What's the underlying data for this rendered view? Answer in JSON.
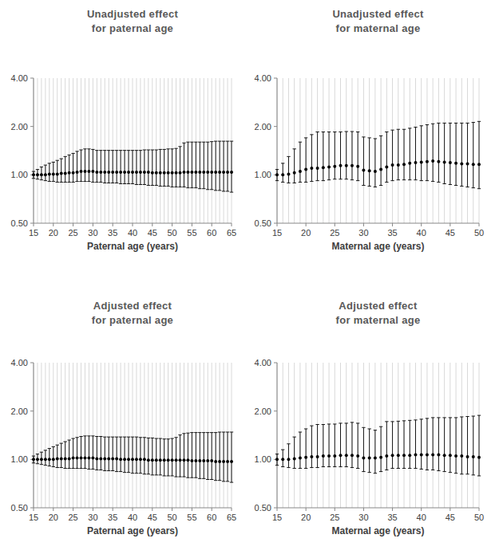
{
  "chart_data": [
    {
      "type": "scatter",
      "title": [
        "Unadjusted effect",
        "for paternal age"
      ],
      "x_label": "Paternal age (years)",
      "x": [
        15,
        16,
        17,
        18,
        19,
        20,
        21,
        22,
        23,
        24,
        25,
        26,
        27,
        28,
        29,
        30,
        31,
        32,
        33,
        34,
        35,
        36,
        37,
        38,
        39,
        40,
        41,
        42,
        43,
        44,
        45,
        46,
        47,
        48,
        49,
        50,
        51,
        52,
        53,
        54,
        55,
        56,
        57,
        58,
        59,
        60,
        61,
        62,
        63,
        64,
        65
      ],
      "values": [
        1.0,
        1.0,
        1.0,
        1.0,
        1.01,
        1.01,
        1.01,
        1.02,
        1.02,
        1.03,
        1.03,
        1.04,
        1.05,
        1.05,
        1.05,
        1.05,
        1.04,
        1.04,
        1.04,
        1.04,
        1.04,
        1.04,
        1.04,
        1.04,
        1.04,
        1.04,
        1.04,
        1.04,
        1.04,
        1.04,
        1.03,
        1.03,
        1.03,
        1.03,
        1.03,
        1.03,
        1.03,
        1.03,
        1.04,
        1.04,
        1.04,
        1.04,
        1.04,
        1.04,
        1.04,
        1.04,
        1.04,
        1.04,
        1.04,
        1.04,
        1.04
      ],
      "ci_lower": [
        0.95,
        0.94,
        0.93,
        0.92,
        0.91,
        0.91,
        0.9,
        0.9,
        0.9,
        0.9,
        0.9,
        0.91,
        0.91,
        0.91,
        0.91,
        0.9,
        0.9,
        0.9,
        0.89,
        0.89,
        0.89,
        0.89,
        0.88,
        0.88,
        0.88,
        0.88,
        0.87,
        0.87,
        0.87,
        0.86,
        0.86,
        0.86,
        0.85,
        0.85,
        0.85,
        0.84,
        0.84,
        0.84,
        0.84,
        0.83,
        0.83,
        0.83,
        0.82,
        0.82,
        0.81,
        0.81,
        0.8,
        0.8,
        0.79,
        0.79,
        0.78
      ],
      "ci_upper": [
        1.05,
        1.08,
        1.12,
        1.15,
        1.18,
        1.2,
        1.23,
        1.26,
        1.3,
        1.33,
        1.36,
        1.4,
        1.43,
        1.45,
        1.45,
        1.44,
        1.42,
        1.42,
        1.42,
        1.42,
        1.42,
        1.42,
        1.42,
        1.42,
        1.42,
        1.42,
        1.42,
        1.42,
        1.43,
        1.43,
        1.43,
        1.43,
        1.44,
        1.44,
        1.45,
        1.45,
        1.46,
        1.5,
        1.58,
        1.6,
        1.6,
        1.6,
        1.6,
        1.6,
        1.6,
        1.61,
        1.62,
        1.62,
        1.62,
        1.62,
        1.62
      ],
      "xlim": [
        15,
        65
      ],
      "xticks": [
        15,
        20,
        25,
        30,
        35,
        40,
        45,
        50,
        55,
        60,
        65
      ],
      "ylim": [
        0.5,
        4
      ],
      "yticks": [
        {
          "value": 0.5,
          "label": "0.50"
        },
        {
          "value": 1,
          "label": "1.00"
        },
        {
          "value": 2,
          "label": "2.00"
        },
        {
          "value": 4,
          "label": "4.00"
        }
      ],
      "log": "y",
      "grid": true,
      "color": "#000000",
      "marker": "circle"
    },
    {
      "type": "scatter",
      "title": [
        "Unadjusted effect",
        "for maternal age"
      ],
      "x_label": "Maternal age (years)",
      "x": [
        15,
        16,
        17,
        18,
        19,
        20,
        21,
        22,
        23,
        24,
        25,
        26,
        27,
        28,
        29,
        30,
        31,
        32,
        33,
        34,
        35,
        36,
        37,
        38,
        39,
        40,
        41,
        42,
        43,
        44,
        45,
        46,
        47,
        48,
        49,
        50
      ],
      "values": [
        1.0,
        1.0,
        1.01,
        1.03,
        1.05,
        1.08,
        1.1,
        1.1,
        1.11,
        1.12,
        1.13,
        1.14,
        1.14,
        1.14,
        1.13,
        1.07,
        1.06,
        1.05,
        1.08,
        1.12,
        1.15,
        1.15,
        1.16,
        1.18,
        1.19,
        1.2,
        1.21,
        1.22,
        1.21,
        1.2,
        1.19,
        1.18,
        1.17,
        1.17,
        1.16,
        1.16
      ],
      "ci_lower": [
        0.92,
        0.9,
        0.89,
        0.89,
        0.9,
        0.9,
        0.91,
        0.92,
        0.92,
        0.93,
        0.94,
        0.94,
        0.94,
        0.93,
        0.92,
        0.86,
        0.85,
        0.84,
        0.86,
        0.9,
        0.92,
        0.93,
        0.93,
        0.93,
        0.93,
        0.92,
        0.92,
        0.91,
        0.9,
        0.88,
        0.87,
        0.86,
        0.85,
        0.84,
        0.83,
        0.82
      ],
      "ci_upper": [
        1.08,
        1.18,
        1.3,
        1.45,
        1.6,
        1.7,
        1.78,
        1.85,
        1.85,
        1.85,
        1.85,
        1.85,
        1.86,
        1.86,
        1.85,
        1.72,
        1.7,
        1.68,
        1.75,
        1.85,
        1.9,
        1.92,
        1.92,
        1.95,
        1.98,
        2.02,
        2.05,
        2.08,
        2.1,
        2.1,
        2.1,
        2.1,
        2.1,
        2.1,
        2.12,
        2.15
      ],
      "xlim": [
        15,
        50
      ],
      "xticks": [
        15,
        20,
        25,
        30,
        35,
        40,
        45,
        50
      ],
      "ylim": [
        0.5,
        4
      ],
      "yticks": [
        {
          "value": 0.5,
          "label": "0.50"
        },
        {
          "value": 1,
          "label": "1.00"
        },
        {
          "value": 2,
          "label": "2.00"
        },
        {
          "value": 4,
          "label": "4.00"
        }
      ],
      "log": "y",
      "grid": true,
      "color": "#000000",
      "marker": "circle"
    },
    {
      "type": "scatter",
      "title": [
        "Adjusted effect",
        "for paternal age"
      ],
      "x_label": "Paternal age (years)",
      "x": [
        15,
        16,
        17,
        18,
        19,
        20,
        21,
        22,
        23,
        24,
        25,
        26,
        27,
        28,
        29,
        30,
        31,
        32,
        33,
        34,
        35,
        36,
        37,
        38,
        39,
        40,
        41,
        42,
        43,
        44,
        45,
        46,
        47,
        48,
        49,
        50,
        51,
        52,
        53,
        54,
        55,
        56,
        57,
        58,
        59,
        60,
        61,
        62,
        63,
        64,
        65
      ],
      "values": [
        1.0,
        1.0,
        1.0,
        1.0,
        1.0,
        1.0,
        1.01,
        1.01,
        1.01,
        1.01,
        1.02,
        1.02,
        1.02,
        1.02,
        1.02,
        1.02,
        1.01,
        1.01,
        1.01,
        1.01,
        1.01,
        1.01,
        1.0,
        1.0,
        1.0,
        1.0,
        1.0,
        1.0,
        1.0,
        0.99,
        0.99,
        0.99,
        0.99,
        0.99,
        0.99,
        0.99,
        0.99,
        0.99,
        0.99,
        0.99,
        0.98,
        0.98,
        0.98,
        0.98,
        0.98,
        0.98,
        0.97,
        0.97,
        0.97,
        0.97,
        0.97
      ],
      "ci_lower": [
        0.95,
        0.94,
        0.93,
        0.92,
        0.91,
        0.9,
        0.89,
        0.89,
        0.88,
        0.88,
        0.88,
        0.88,
        0.88,
        0.88,
        0.87,
        0.87,
        0.86,
        0.86,
        0.85,
        0.85,
        0.85,
        0.84,
        0.84,
        0.83,
        0.83,
        0.82,
        0.82,
        0.82,
        0.81,
        0.81,
        0.8,
        0.8,
        0.8,
        0.79,
        0.79,
        0.79,
        0.78,
        0.78,
        0.78,
        0.77,
        0.77,
        0.77,
        0.76,
        0.76,
        0.75,
        0.75,
        0.74,
        0.74,
        0.73,
        0.73,
        0.72
      ],
      "ci_upper": [
        1.05,
        1.08,
        1.11,
        1.14,
        1.17,
        1.2,
        1.23,
        1.26,
        1.29,
        1.32,
        1.35,
        1.37,
        1.39,
        1.4,
        1.4,
        1.4,
        1.39,
        1.39,
        1.38,
        1.38,
        1.38,
        1.38,
        1.38,
        1.38,
        1.38,
        1.38,
        1.38,
        1.37,
        1.37,
        1.36,
        1.36,
        1.35,
        1.35,
        1.34,
        1.34,
        1.35,
        1.37,
        1.42,
        1.45,
        1.46,
        1.47,
        1.47,
        1.47,
        1.47,
        1.47,
        1.47,
        1.47,
        1.48,
        1.48,
        1.48,
        1.48
      ],
      "xlim": [
        15,
        65
      ],
      "xticks": [
        15,
        20,
        25,
        30,
        35,
        40,
        45,
        50,
        55,
        60,
        65
      ],
      "ylim": [
        0.5,
        4
      ],
      "yticks": [
        {
          "value": 0.5,
          "label": "0.50"
        },
        {
          "value": 1,
          "label": "1.00"
        },
        {
          "value": 2,
          "label": "2.00"
        },
        {
          "value": 4,
          "label": "4.00"
        }
      ],
      "log": "y",
      "grid": true,
      "color": "#000000",
      "marker": "circle"
    },
    {
      "type": "scatter",
      "title": [
        "Adjusted effect",
        "for maternal age"
      ],
      "x_label": "Maternal age (years)",
      "x": [
        15,
        16,
        17,
        18,
        19,
        20,
        21,
        22,
        23,
        24,
        25,
        26,
        27,
        28,
        29,
        30,
        31,
        32,
        33,
        34,
        35,
        36,
        37,
        38,
        39,
        40,
        41,
        42,
        43,
        44,
        45,
        46,
        47,
        48,
        49,
        50
      ],
      "values": [
        1.0,
        1.0,
        1.0,
        1.01,
        1.02,
        1.03,
        1.04,
        1.04,
        1.05,
        1.05,
        1.05,
        1.06,
        1.06,
        1.06,
        1.05,
        1.02,
        1.02,
        1.02,
        1.03,
        1.05,
        1.06,
        1.06,
        1.06,
        1.06,
        1.07,
        1.07,
        1.07,
        1.07,
        1.07,
        1.06,
        1.06,
        1.05,
        1.05,
        1.04,
        1.04,
        1.03
      ],
      "ci_lower": [
        0.92,
        0.9,
        0.89,
        0.88,
        0.88,
        0.88,
        0.89,
        0.89,
        0.9,
        0.9,
        0.9,
        0.9,
        0.9,
        0.89,
        0.88,
        0.84,
        0.83,
        0.82,
        0.84,
        0.86,
        0.88,
        0.88,
        0.88,
        0.88,
        0.88,
        0.87,
        0.86,
        0.86,
        0.85,
        0.84,
        0.83,
        0.82,
        0.81,
        0.81,
        0.8,
        0.79
      ],
      "ci_upper": [
        1.08,
        1.15,
        1.25,
        1.38,
        1.48,
        1.55,
        1.62,
        1.65,
        1.65,
        1.66,
        1.66,
        1.68,
        1.68,
        1.7,
        1.68,
        1.58,
        1.55,
        1.52,
        1.6,
        1.72,
        1.72,
        1.73,
        1.74,
        1.75,
        1.76,
        1.78,
        1.8,
        1.82,
        1.82,
        1.82,
        1.82,
        1.82,
        1.84,
        1.85,
        1.86,
        1.88
      ],
      "xlim": [
        15,
        50
      ],
      "xticks": [
        15,
        20,
        25,
        30,
        35,
        40,
        45,
        50
      ],
      "ylim": [
        0.5,
        4
      ],
      "yticks": [
        {
          "value": 0.5,
          "label": "0.50"
        },
        {
          "value": 1,
          "label": "1.00"
        },
        {
          "value": 2,
          "label": "2.00"
        },
        {
          "value": 4,
          "label": "4.00"
        }
      ],
      "log": "y",
      "grid": true,
      "color": "#000000",
      "marker": "circle"
    }
  ]
}
